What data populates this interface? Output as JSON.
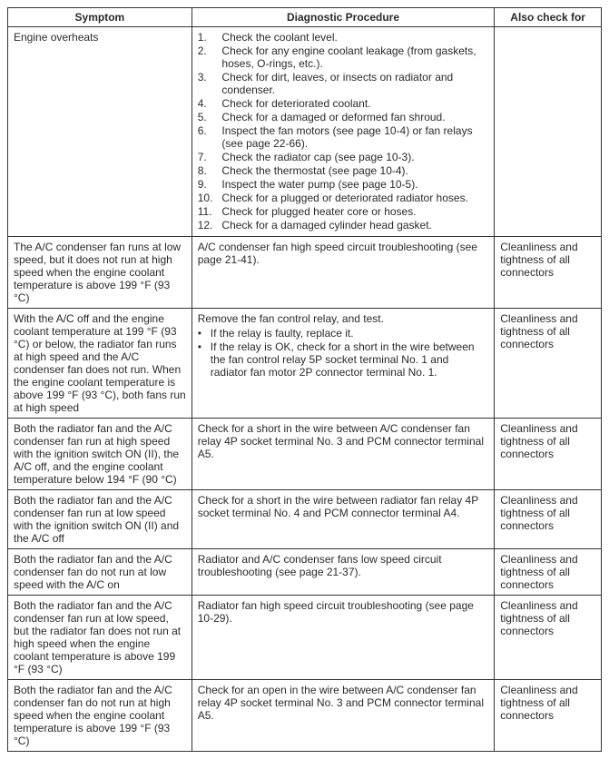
{
  "headers": {
    "symptom": "Symptom",
    "diagnostic": "Diagnostic Procedure",
    "also": "Also check for"
  },
  "rows": [
    {
      "symptom": "Engine overheats",
      "diagnostic": {
        "type": "numbered",
        "items": [
          "Check the coolant level.",
          "Check for any engine coolant leakage (from gaskets, hoses, O-rings, etc.).",
          "Check for dirt, leaves, or insects on radiator and condenser.",
          "Check for deteriorated coolant.",
          "Check for a damaged or deformed fan shroud.",
          "Inspect the fan motors (see page 10-4) or fan relays (see page 22-66).",
          "Check the radiator cap (see page 10-3).",
          "Check the thermostat (see page 10-4).",
          "Inspect the water pump (see page 10-5).",
          "Check for a plugged or deteriorated radiator hoses.",
          "Check for plugged heater core or hoses.",
          "Check for a damaged cylinder head gasket."
        ]
      },
      "also": ""
    },
    {
      "symptom": "The A/C condenser fan runs at low speed, but it does not run at high speed when the engine coolant temperature is above 199 °F (93 °C)",
      "diagnostic": {
        "type": "text",
        "text": "A/C condenser fan high speed circuit troubleshooting (see page 21-41)."
      },
      "also": "Cleanliness and tightness of all connectors"
    },
    {
      "symptom": "With the A/C off and the engine coolant temperature at 199 °F (93 °C) or below, the radiator fan runs at high speed and the A/C condenser fan does not run. When the engine coolant temperature is above 199 °F (93 °C), both fans run at high speed",
      "diagnostic": {
        "type": "bulleted",
        "intro": "Remove the fan control relay, and test.",
        "items": [
          "If the relay is faulty, replace it.",
          "If the relay is OK, check for a short in the wire between the fan control relay 5P socket terminal No. 1 and radiator fan motor 2P connector terminal No. 1."
        ]
      },
      "also": "Cleanliness and tightness of all connectors"
    },
    {
      "symptom": "Both the radiator fan and the A/C condenser fan run at high speed with the ignition switch ON (II), the A/C off, and the engine coolant temperature below 194 °F (90 °C)",
      "diagnostic": {
        "type": "text",
        "text": "Check for a short in the wire between A/C condenser fan relay 4P socket terminal No. 3 and PCM connector terminal A5."
      },
      "also": "Cleanliness and tightness of all connectors"
    },
    {
      "symptom": "Both the radiator fan and the A/C condenser fan run at low speed with the ignition switch ON (II) and the A/C off",
      "diagnostic": {
        "type": "text",
        "text": "Check for a short in the wire between radiator fan relay 4P socket terminal No. 4 and PCM connector terminal A4."
      },
      "also": "Cleanliness and tightness of all connectors"
    },
    {
      "symptom": "Both the radiator fan and the A/C condenser fan do not run at low speed with the A/C on",
      "diagnostic": {
        "type": "text",
        "text": "Radiator and A/C condenser fans low speed circuit troubleshooting (see page 21-37)."
      },
      "also": "Cleanliness and tightness of all connectors"
    },
    {
      "symptom": "Both the radiator fan and the A/C condenser fan run at low speed, but the radiator fan does not run at high speed when the engine coolant temperature is above 199 °F (93 °C)",
      "diagnostic": {
        "type": "text",
        "text": "Radiator fan high speed circuit troubleshooting (see page 10-29)."
      },
      "also": "Cleanliness and tightness of all connectors"
    },
    {
      "symptom": "Both the radiator fan and the A/C condenser fan do not run at high speed when the engine coolant temperature is above 199 °F (93 °C)",
      "diagnostic": {
        "type": "text",
        "text": "Check for an open in the wire between A/C condenser fan relay 4P socket terminal No. 3 and PCM connector terminal A5."
      },
      "also": "Cleanliness and tightness of all connectors"
    }
  ]
}
